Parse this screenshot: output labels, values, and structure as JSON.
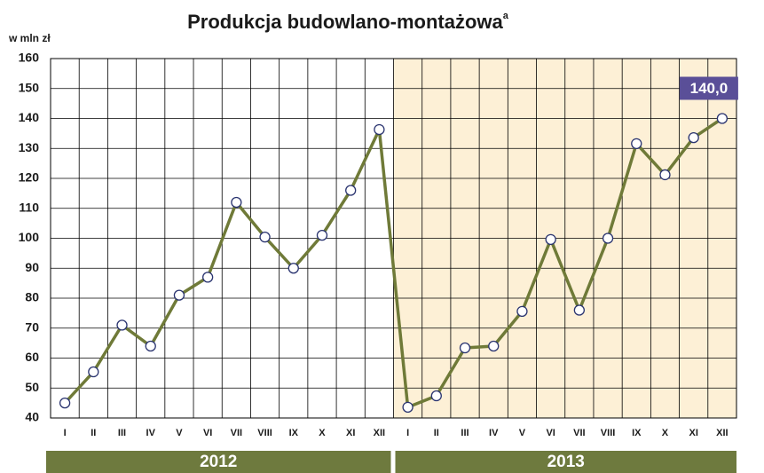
{
  "chart_data": {
    "type": "line",
    "title": "Produkcja budowlano-montażowa",
    "title_superscript": "a",
    "ylabel": "w mln zł",
    "categories": [
      "I",
      "II",
      "III",
      "IV",
      "V",
      "VI",
      "VII",
      "VIII",
      "IX",
      "X",
      "XI",
      "XII",
      "I",
      "II",
      "III",
      "IV",
      "V",
      "VI",
      "VII",
      "VIII",
      "IX",
      "X",
      "XI",
      "XII"
    ],
    "groups": [
      "2012",
      "2013"
    ],
    "series": [
      {
        "color": "#6f7a38",
        "values": [
          45,
          55.4,
          71,
          64,
          81,
          87,
          112,
          100.4,
          90,
          101,
          116,
          136.3,
          43.6,
          47.4,
          63.4,
          64,
          75.6,
          99.6,
          76,
          100,
          131.6,
          121.2,
          133.6,
          140
        ],
        "value_labels": [
          null,
          null,
          null,
          null,
          null,
          null,
          null,
          null,
          null,
          null,
          null,
          null,
          null,
          null,
          null,
          null,
          null,
          null,
          null,
          null,
          null,
          null,
          null,
          "140,0"
        ]
      }
    ],
    "ylim": [
      40,
      160
    ],
    "yticks": [
      40,
      50,
      60,
      70,
      80,
      90,
      100,
      110,
      120,
      130,
      140,
      150,
      160
    ],
    "grid": true
  }
}
